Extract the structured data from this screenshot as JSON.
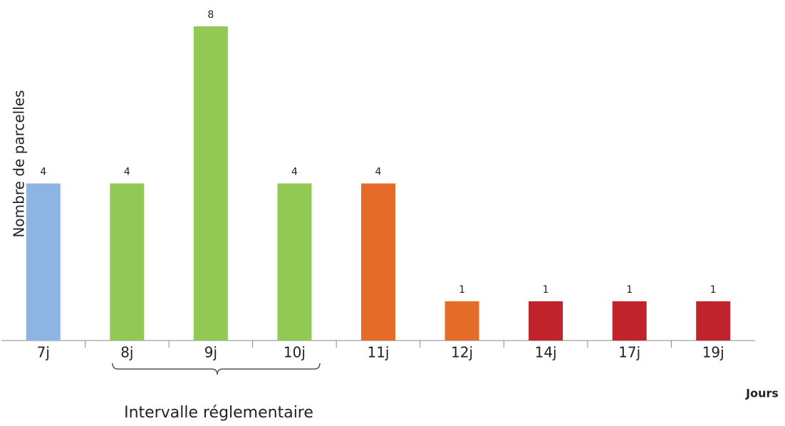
{
  "chart_data": {
    "type": "bar",
    "categories": [
      "7j",
      "8j",
      "9j",
      "10j",
      "11j",
      "12j",
      "14j",
      "17j",
      "19j"
    ],
    "values": [
      4,
      4,
      8,
      4,
      4,
      1,
      1,
      1,
      1
    ],
    "colors": [
      "#8eb4e3",
      "#92c955",
      "#92c955",
      "#92c955",
      "#e46c28",
      "#e46c28",
      "#c0232c",
      "#c0232c",
      "#c0232c"
    ],
    "ylim": [
      0,
      8
    ],
    "x_label": "Jours",
    "y_label": "Nombre de parcelles",
    "annotation": "Intervalle réglementaire"
  }
}
